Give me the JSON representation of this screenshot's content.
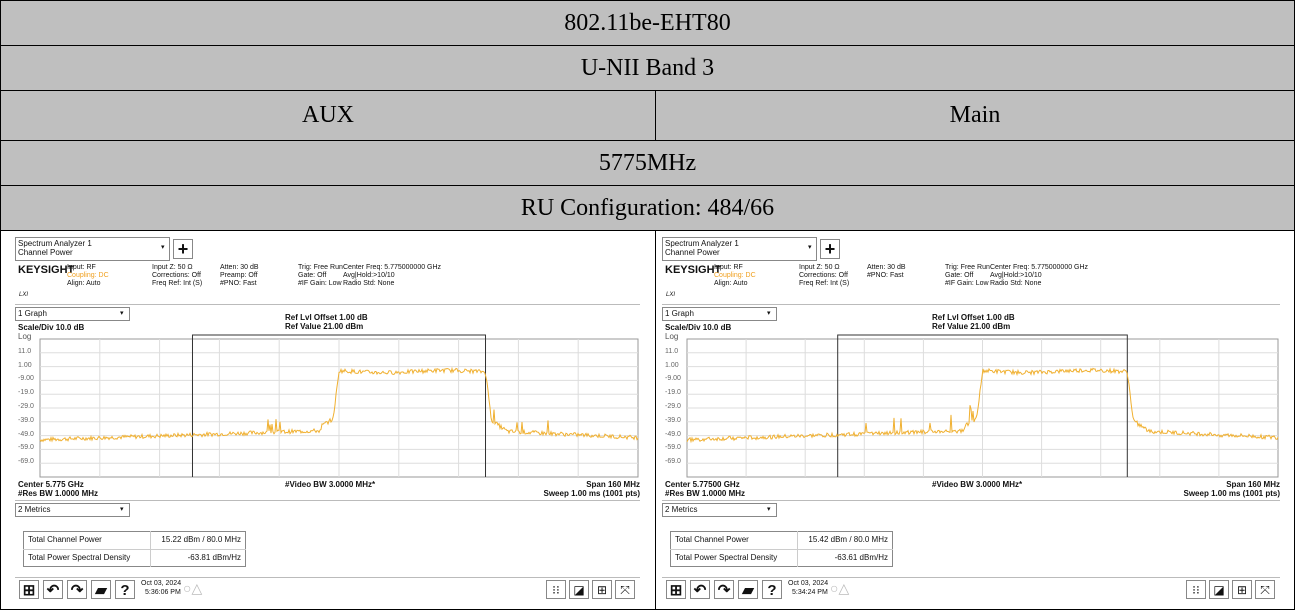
{
  "header": {
    "title": "802.11be-EHT80",
    "band": "U-NII Band 3",
    "columns": [
      "AUX",
      "Main"
    ],
    "frequency": "5775MHz",
    "ru": "RU Configuration: 484/66"
  },
  "panels": [
    {
      "app": "Spectrum Analyzer 1",
      "mode": "Channel Power",
      "brand": "KEYSIGHT",
      "status": [
        [
          "Input: RF",
          "Coupling: DC",
          "Align: Auto"
        ],
        [
          "Input Z: 50 Ω",
          "Corrections: Off",
          "Freq Ref: Int (S)"
        ],
        [
          "Atten: 30 dB",
          "Preamp: Off",
          "#PNO: Fast"
        ],
        [
          "Trig: Free Run",
          "Gate: Off",
          "#IF Gain: Low"
        ],
        [
          "Center Freq: 5.775000000 GHz",
          "Avg|Hold:>10/10",
          "Radio Std: None"
        ]
      ],
      "graph_menu": "1 Graph",
      "ref_offset": "Ref Lvl Offset 1.00 dB",
      "ref_value": "Ref Value 21.00 dBm",
      "scale": "Scale/Div 10.0 dB",
      "log": "Log",
      "y_labels": [
        "11.0",
        "1.00",
        "-9.00",
        "-19.0",
        "-29.0",
        "-39.0",
        "-49.0",
        "-59.0",
        "-69.0"
      ],
      "center": "Center 5.775 GHz",
      "res_bw": "#Res BW 1.0000 MHz",
      "video_bw": "#Video BW 3.0000 MHz*",
      "span": "Span 160 MHz",
      "sweep": "Sweep 1.00 ms (1001 pts)",
      "metrics_menu": "2 Metrics",
      "metrics": [
        [
          "Total Channel Power",
          "15.22 dBm / 80.0 MHz"
        ],
        [
          "Total Power Spectral Density",
          "-63.81 dBm/Hz"
        ]
      ],
      "date": "Oct 03, 2024",
      "time": "5:36:06 PM"
    },
    {
      "app": "Spectrum Analyzer 1",
      "mode": "Channel Power",
      "brand": "KEYSIGHT",
      "status": [
        [
          "Input: RF",
          "Coupling: DC",
          "Align: Auto"
        ],
        [
          "Input Z: 50 Ω",
          "Corrections: Off",
          "Freq Ref: Int (S)"
        ],
        [
          "Atten: 30 dB",
          "#PNO: Fast"
        ],
        [
          "Trig: Free Run",
          "Gate: Off",
          "#IF Gain: Low"
        ],
        [
          "Center Freq: 5.775000000 GHz",
          "Avg|Hold:>10/10",
          "Radio Std: None"
        ]
      ],
      "graph_menu": "1 Graph",
      "ref_offset": "Ref Lvl Offset 1.00 dB",
      "ref_value": "Ref Value 21.00 dBm",
      "scale": "Scale/Div 10.0 dB",
      "log": "Log",
      "y_labels": [
        "11.0",
        "1.00",
        "-9.00",
        "-19.0",
        "-29.0",
        "-39.0",
        "-49.0",
        "-59.0",
        "-69.0"
      ],
      "center": "Center 5.77500 GHz",
      "res_bw": "#Res BW 1.0000 MHz",
      "video_bw": "#Video BW 3.0000 MHz*",
      "span": "Span 160 MHz",
      "sweep": "Sweep 1.00 ms (1001 pts)",
      "metrics_menu": "2 Metrics",
      "metrics": [
        [
          "Total Channel Power",
          "15.42 dBm / 80.0 MHz"
        ],
        [
          "Total Power Spectral Density",
          "-63.61 dBm/Hz"
        ]
      ],
      "date": "Oct 03, 2024",
      "time": "5:34:24 PM"
    }
  ]
}
